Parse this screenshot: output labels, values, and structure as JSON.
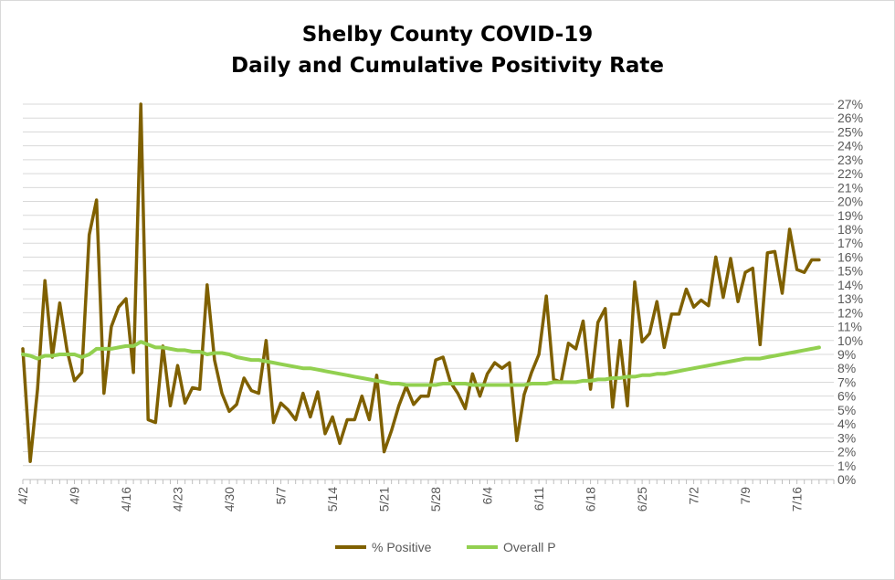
{
  "chart_data": {
    "type": "line",
    "title": "Shelby County COVID-19",
    "subtitle": "Daily and Cumulative Positivity Rate",
    "xlabel": "",
    "ylabel": "",
    "x_tick_labels": [
      "4/2",
      "4/9",
      "4/16",
      "4/23",
      "4/30",
      "5/7",
      "5/14",
      "5/21",
      "5/28",
      "6/4",
      "6/11",
      "6/18",
      "6/25",
      "7/2",
      "7/9",
      "7/16"
    ],
    "y_tick_labels": [
      "0%",
      "1%",
      "2%",
      "3%",
      "4%",
      "5%",
      "6%",
      "7%",
      "8%",
      "9%",
      "10%",
      "11%",
      "12%",
      "13%",
      "14%",
      "15%",
      "16%",
      "17%",
      "18%",
      "19%",
      "20%",
      "21%",
      "22%",
      "23%",
      "24%",
      "25%",
      "26%",
      "27%"
    ],
    "ylim": [
      0,
      27
    ],
    "y_axis_position": "right",
    "x_axis_start": "4/2",
    "x_axis_end": "7/20",
    "grid": "horizontal",
    "legend_position": "bottom",
    "series": [
      {
        "name": "% Positive",
        "color": "#7f6000",
        "values": [
          9.4,
          1.3,
          6.5,
          14.3,
          8.8,
          12.7,
          9.3,
          7.1,
          7.7,
          17.6,
          20.1,
          6.2,
          11.0,
          12.4,
          13.0,
          7.7,
          27.0,
          4.3,
          4.1,
          9.6,
          5.3,
          8.2,
          5.5,
          6.6,
          6.5,
          14.0,
          8.6,
          6.2,
          4.9,
          5.4,
          7.3,
          6.4,
          6.2,
          10.0,
          4.1,
          5.5,
          5.0,
          4.3,
          6.2,
          4.5,
          6.3,
          3.3,
          4.5,
          2.6,
          4.3,
          4.3,
          6.0,
          4.3,
          7.5,
          2.0,
          3.5,
          5.3,
          6.7,
          5.4,
          6.0,
          6.0,
          8.6,
          8.8,
          7.0,
          6.2,
          5.1,
          7.6,
          6.0,
          7.6,
          8.4,
          8.0,
          8.4,
          2.8,
          6.1,
          7.7,
          9.0,
          13.2,
          7.2,
          7.0,
          9.8,
          9.4,
          11.4,
          6.5,
          11.3,
          12.3,
          5.2,
          10.0,
          5.3,
          14.2,
          9.9,
          10.5,
          12.8,
          9.5,
          11.9,
          11.9,
          13.7,
          12.4,
          12.9,
          12.5,
          16.0,
          13.1,
          15.9,
          12.8,
          14.9,
          15.2,
          9.7,
          16.3,
          16.4,
          13.4,
          18.0,
          15.1,
          14.9,
          15.8,
          15.8
        ]
      },
      {
        "name": "Overall P",
        "color": "#92d050",
        "values": [
          9.0,
          8.9,
          8.7,
          8.9,
          8.9,
          9.0,
          9.0,
          9.0,
          8.8,
          9.0,
          9.4,
          9.4,
          9.4,
          9.5,
          9.6,
          9.6,
          9.9,
          9.7,
          9.5,
          9.5,
          9.4,
          9.3,
          9.3,
          9.2,
          9.2,
          9.0,
          9.1,
          9.1,
          9.0,
          8.8,
          8.7,
          8.6,
          8.6,
          8.5,
          8.4,
          8.3,
          8.2,
          8.1,
          8.0,
          8.0,
          7.9,
          7.8,
          7.7,
          7.6,
          7.5,
          7.4,
          7.3,
          7.2,
          7.1,
          7.0,
          6.9,
          6.9,
          6.8,
          6.8,
          6.8,
          6.8,
          6.8,
          6.9,
          6.9,
          6.9,
          6.9,
          6.8,
          6.8,
          6.8,
          6.8,
          6.8,
          6.8,
          6.8,
          6.8,
          6.9,
          6.9,
          6.9,
          7.0,
          7.0,
          7.0,
          7.0,
          7.1,
          7.1,
          7.2,
          7.2,
          7.3,
          7.3,
          7.4,
          7.4,
          7.5,
          7.5,
          7.6,
          7.6,
          7.7,
          7.8,
          7.9,
          8.0,
          8.1,
          8.2,
          8.3,
          8.4,
          8.5,
          8.6,
          8.7,
          8.7,
          8.7,
          8.8,
          8.9,
          9.0,
          9.1,
          9.2,
          9.3,
          9.4,
          9.5
        ]
      }
    ]
  }
}
